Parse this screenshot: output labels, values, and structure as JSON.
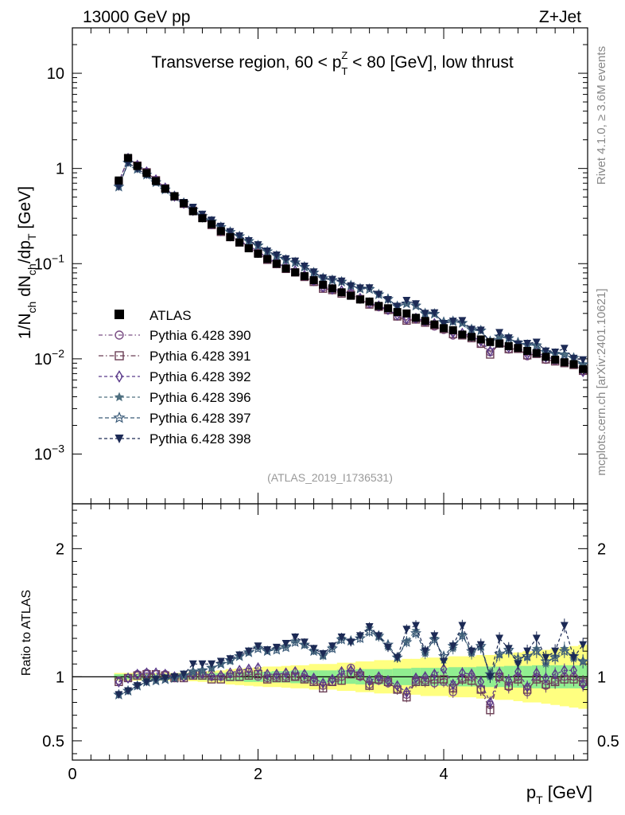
{
  "header": {
    "left": "13000 GeV pp",
    "right": "Z+Jet"
  },
  "side_labels": {
    "rivet": "Rivet 4.1.0, ≥ 3.6M events",
    "mcplots": "mcplots.cern.ch [arXiv:2401.10621]"
  },
  "colors": {
    "atlas": "#000000",
    "p390": "#7b4f84",
    "p391": "#6b3f55",
    "p392": "#5a3a8a",
    "p396": "#4f7080",
    "p397": "#3a5a78",
    "p398": "#1c2a55",
    "band_inner": "#90ee90",
    "band_outer": "#ffff80"
  },
  "chart_data": [
    {
      "type": "scatter",
      "panel": "main",
      "title": "Transverse region, 60 < p_T^Z < 80 [GeV], low thrust",
      "title_parts": {
        "a": "Transverse region, 60 < p",
        "sup": "Z",
        "sub": "T",
        "b": " < 80 [GeV], low thrust"
      },
      "ylabel": "1/N_ch dN_ch/dp_T [GeV]",
      "ylabel_parts": {
        "a": "1/N",
        "s1": "ch",
        "b": " dN",
        "s2": "ch",
        "c": "/dp",
        "s3": "T",
        "d": " [GeV]"
      },
      "yscale": "log",
      "ylim": [
        0.0003,
        30
      ],
      "xlim": [
        0,
        5.55
      ],
      "y_ticks": [
        {
          "v": 10,
          "label": "10"
        },
        {
          "v": 1,
          "label": "1"
        },
        {
          "v": 0.1,
          "base": "10",
          "exp": "−1"
        },
        {
          "v": 0.01,
          "base": "10",
          "exp": "−2"
        },
        {
          "v": 0.001,
          "base": "10",
          "exp": "−3"
        }
      ],
      "watermark": "(ATLAS_2019_I1736531)",
      "x": [
        0.5,
        0.6,
        0.7,
        0.8,
        0.9,
        1.0,
        1.1,
        1.2,
        1.3,
        1.4,
        1.5,
        1.6,
        1.7,
        1.8,
        1.9,
        2.0,
        2.1,
        2.2,
        2.3,
        2.4,
        2.5,
        2.6,
        2.7,
        2.8,
        2.9,
        3.0,
        3.1,
        3.2,
        3.3,
        3.4,
        3.5,
        3.6,
        3.7,
        3.8,
        3.9,
        4.0,
        4.1,
        4.2,
        4.3,
        4.4,
        4.5,
        4.6,
        4.7,
        4.8,
        4.9,
        5.0,
        5.1,
        5.2,
        5.3,
        5.4,
        5.5
      ],
      "atlas": [
        0.748,
        1.29,
        1.06,
        0.894,
        0.737,
        0.612,
        0.512,
        0.43,
        0.355,
        0.3,
        0.26,
        0.22,
        0.19,
        0.167,
        0.145,
        0.127,
        0.112,
        0.1,
        0.089,
        0.081,
        0.074,
        0.067,
        0.06,
        0.055,
        0.05,
        0.046,
        0.042,
        0.04,
        0.036,
        0.034,
        0.031,
        0.03,
        0.027,
        0.025,
        0.023,
        0.021,
        0.02,
        0.018,
        0.017,
        0.016,
        0.015,
        0.0145,
        0.0136,
        0.013,
        0.0121,
        0.0115,
        0.0105,
        0.0098,
        0.0092,
        0.0088,
        0.0078
      ],
      "series": [
        {
          "name": "Pythia 6.428 390",
          "key": "p390",
          "marker": "circle-open",
          "ratio": [
            0.97,
            0.99,
            1.02,
            1.03,
            1.02,
            1.02,
            1.0,
            1.0,
            1.02,
            1.02,
            1.0,
            1.0,
            1.02,
            1.03,
            1.04,
            1.0,
            0.99,
            1.0,
            1.0,
            1.0,
            0.99,
            0.97,
            0.93,
            0.96,
            1.0,
            1.07,
            1.0,
            0.94,
            0.97,
            0.95,
            0.9,
            0.86,
            0.97,
            0.97,
            0.95,
            0.96,
            0.88,
            0.99,
            1.0,
            0.9,
            0.78,
            1.0,
            0.92,
            1.0,
            0.88,
            1.0,
            0.93,
            0.97,
            1.0,
            1.0,
            0.95
          ]
        },
        {
          "name": "Pythia 6.428 391",
          "key": "p391",
          "marker": "square-open",
          "ratio": [
            0.96,
            0.99,
            1.01,
            1.02,
            1.02,
            1.01,
            0.99,
            0.99,
            1.01,
            1.01,
            0.98,
            0.98,
            1.0,
            1.0,
            1.01,
            1.02,
            0.98,
            0.99,
            0.99,
            1.0,
            0.98,
            0.96,
            0.91,
            0.96,
            0.97,
            1.02,
            1.01,
            0.93,
            0.98,
            0.96,
            0.9,
            0.84,
            0.96,
            0.96,
            0.98,
            0.98,
            0.91,
            0.98,
            0.97,
            0.9,
            0.74,
            1.0,
            0.93,
            0.98,
            0.9,
            0.98,
            0.94,
            0.96,
            0.98,
            0.98,
            0.96
          ]
        },
        {
          "name": "Pythia 6.428 392",
          "key": "p392",
          "marker": "diamond-open",
          "ratio": [
            0.96,
            0.99,
            1.02,
            1.03,
            1.03,
            1.02,
            1.0,
            1.0,
            1.02,
            1.03,
            1.01,
            1.01,
            1.03,
            1.05,
            1.06,
            1.07,
            1.02,
            1.02,
            1.03,
            1.04,
            1.02,
            0.99,
            0.95,
            0.98,
            1.04,
            1.05,
            1.03,
            0.97,
            1.0,
            0.97,
            0.93,
            0.88,
            0.99,
            1.0,
            1.02,
            1.06,
            0.94,
            1.03,
            1.02,
            0.96,
            0.8,
            1.03,
            0.97,
            1.04,
            0.92,
            1.03,
            0.99,
            1.02,
            1.05,
            1.05,
            0.94
          ]
        },
        {
          "name": "Pythia 6.428 396",
          "key": "p396",
          "marker": "star-full",
          "ratio": [
            0.86,
            0.89,
            0.93,
            0.96,
            0.97,
            0.98,
            0.99,
            1.01,
            1.04,
            1.05,
            1.07,
            1.1,
            1.12,
            1.16,
            1.19,
            1.23,
            1.2,
            1.22,
            1.24,
            1.28,
            1.25,
            1.2,
            1.16,
            1.23,
            1.3,
            1.28,
            1.32,
            1.38,
            1.31,
            1.23,
            1.15,
            1.28,
            1.36,
            1.18,
            1.3,
            1.13,
            1.22,
            1.33,
            1.18,
            1.23,
            1.0,
            1.17,
            1.2,
            1.12,
            1.15,
            1.22,
            1.1,
            1.16,
            1.22,
            1.14,
            1.12
          ]
        },
        {
          "name": "Pythia 6.428 397",
          "key": "p397",
          "marker": "star-open",
          "ratio": [
            0.86,
            0.89,
            0.93,
            0.96,
            0.97,
            0.98,
            0.99,
            1.01,
            1.04,
            1.05,
            1.07,
            1.1,
            1.13,
            1.16,
            1.19,
            1.22,
            1.2,
            1.21,
            1.23,
            1.27,
            1.25,
            1.2,
            1.17,
            1.22,
            1.29,
            1.28,
            1.3,
            1.35,
            1.32,
            1.25,
            1.15,
            1.27,
            1.34,
            1.2,
            1.29,
            1.16,
            1.24,
            1.32,
            1.2,
            1.24,
            1.02,
            1.18,
            1.21,
            1.14,
            1.16,
            1.2,
            1.12,
            1.15,
            1.2,
            1.16,
            1.12
          ]
        },
        {
          "name": "Pythia 6.428 398",
          "key": "p398",
          "marker": "triangle-down-full",
          "ratio": [
            0.86,
            0.89,
            0.93,
            0.96,
            0.98,
            0.99,
            1.0,
            1.02,
            1.1,
            1.1,
            1.1,
            1.12,
            1.14,
            1.17,
            1.2,
            1.24,
            1.21,
            1.23,
            1.26,
            1.31,
            1.27,
            1.22,
            1.18,
            1.24,
            1.31,
            1.27,
            1.32,
            1.39,
            1.32,
            1.23,
            1.15,
            1.37,
            1.4,
            1.2,
            1.32,
            1.12,
            1.24,
            1.4,
            1.2,
            1.25,
            1.0,
            1.3,
            1.22,
            1.1,
            1.2,
            1.3,
            1.15,
            1.2,
            1.4,
            1.15,
            1.25
          ]
        }
      ]
    },
    {
      "type": "scatter",
      "panel": "ratio",
      "ylabel": "Ratio to ATLAS",
      "xlabel": "p_T [GeV]",
      "xlabel_parts": {
        "a": "p",
        "sub": "T",
        "b": " [GeV]"
      },
      "ylim": [
        0.35,
        2.35
      ],
      "xlim": [
        0,
        5.55
      ],
      "y_ticks": [
        {
          "v": 2,
          "label": "2"
        },
        {
          "v": 1,
          "label": "1"
        },
        {
          "v": 0.5,
          "label": "0.5"
        }
      ],
      "x_ticks": [
        {
          "v": 0,
          "label": "0"
        },
        {
          "v": 2,
          "label": "2"
        },
        {
          "v": 4,
          "label": "4"
        }
      ],
      "band_inner": [
        0.02,
        0.02,
        0.02,
        0.02,
        0.02,
        0.02,
        0.02,
        0.02,
        0.02,
        0.025,
        0.03,
        0.03,
        0.035,
        0.035,
        0.04,
        0.04,
        0.04,
        0.045,
        0.045,
        0.05,
        0.05,
        0.05,
        0.05,
        0.05,
        0.055,
        0.055,
        0.06,
        0.06,
        0.06,
        0.06,
        0.065,
        0.065,
        0.07,
        0.07,
        0.07,
        0.07,
        0.075,
        0.075,
        0.075,
        0.08,
        0.08,
        0.08,
        0.085,
        0.085,
        0.085,
        0.09,
        0.09,
        0.09,
        0.09,
        0.09,
        0.09
      ],
      "band_outer": [
        0.03,
        0.03,
        0.03,
        0.03,
        0.03,
        0.03,
        0.03,
        0.03,
        0.035,
        0.04,
        0.045,
        0.05,
        0.06,
        0.065,
        0.07,
        0.075,
        0.08,
        0.08,
        0.085,
        0.09,
        0.09,
        0.1,
        0.1,
        0.1,
        0.11,
        0.11,
        0.12,
        0.12,
        0.13,
        0.13,
        0.13,
        0.14,
        0.14,
        0.15,
        0.15,
        0.15,
        0.16,
        0.16,
        0.16,
        0.17,
        0.17,
        0.18,
        0.18,
        0.19,
        0.2,
        0.2,
        0.21,
        0.22,
        0.23,
        0.24,
        0.25
      ]
    }
  ]
}
